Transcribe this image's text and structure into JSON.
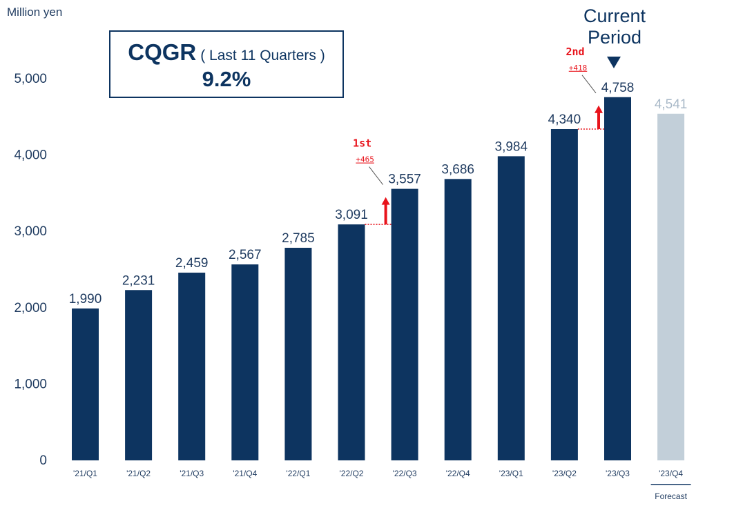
{
  "unit_label": "Million yen",
  "cqgr": {
    "title": "CQGR",
    "subtitle": "( Last 11 Quarters )",
    "value": "9.2%"
  },
  "current_period_label": [
    "Current",
    "Period"
  ],
  "forecast_label": "Forecast",
  "colors": {
    "actual": "#0d3460",
    "forecast": "#c2cfd9",
    "forecast_text": "#a9b9c8",
    "highlight": "#e8131b",
    "axis_text": "#1e3a5f"
  },
  "chart_data": {
    "type": "bar",
    "title": "",
    "xlabel": "",
    "ylabel": "Million yen",
    "ylim": [
      0,
      5000
    ],
    "yticks": [
      "0",
      "1,000",
      "2,000",
      "3,000",
      "4,000",
      "5,000"
    ],
    "ytick_values": [
      0,
      1000,
      2000,
      3000,
      4000,
      5000
    ],
    "categories": [
      "'21/Q1",
      "'21/Q2",
      "'21/Q3",
      "'21/Q4",
      "'22/Q1",
      "'22/Q2",
      "'22/Q3",
      "'22/Q4",
      "'23/Q1",
      "'23/Q2",
      "'23/Q3",
      "'23/Q4"
    ],
    "values": [
      1990,
      2231,
      2459,
      2567,
      2785,
      3091,
      3557,
      3686,
      3984,
      4340,
      4758,
      4541
    ],
    "value_labels": [
      "1,990",
      "2,231",
      "2,459",
      "2,567",
      "2,785",
      "3,091",
      "3,557",
      "3,686",
      "3,984",
      "4,340",
      "4,758",
      "4,541"
    ],
    "forecast_index": 11,
    "current_index": 10,
    "annotations": [
      {
        "label": "1st",
        "delta": "+465",
        "from_index": 5,
        "to_index": 6
      },
      {
        "label": "2nd",
        "delta": "+418",
        "from_index": 9,
        "to_index": 10
      }
    ]
  }
}
